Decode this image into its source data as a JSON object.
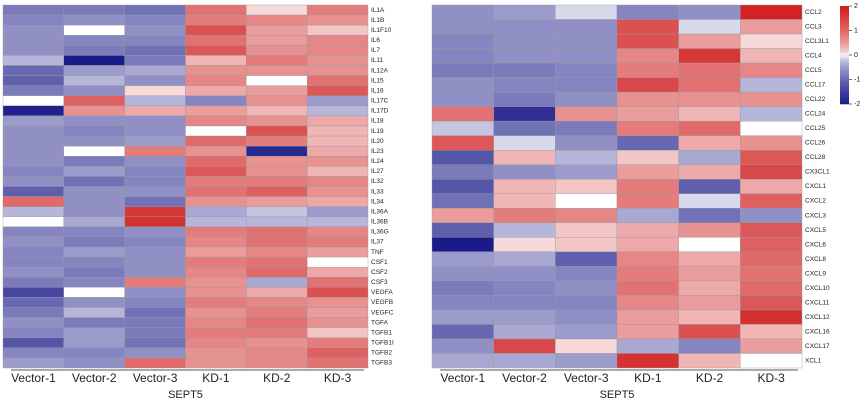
{
  "chart_data": [
    {
      "type": "heatmap",
      "xlabel": "SEPT5",
      "columns": [
        "Vector-1",
        "Vector-2",
        "Vector-3",
        "KD-1",
        "KD-2",
        "KD-3"
      ],
      "rows": [
        "IL1A",
        "IL1B",
        "IL1F10",
        "IL6",
        "IL7",
        "IL11",
        "IL12A",
        "IL15",
        "IL16",
        "IL17C",
        "IL17D",
        "IL18",
        "IL19",
        "IL20",
        "IL23",
        "IL24",
        "IL27",
        "IL32",
        "IL33",
        "IL34",
        "IL36A",
        "IL36B",
        "IL36G",
        "IL37",
        "TNF",
        "CSF1",
        "CSF2",
        "CSF3",
        "VEGFA",
        "VEGFB",
        "VEGFC",
        "TGFA",
        "TGFB1",
        "TGFB1I",
        "TGFB2",
        "TGFB3"
      ],
      "colors": [
        "#1a1a8a",
        "#ffffff",
        "#d01c1c"
      ],
      "zlim": [
        -2,
        2
      ],
      "values": [
        [
          -0.8,
          -0.8,
          -0.9,
          0.9,
          0.1,
          0.8
        ],
        [
          -0.7,
          -0.6,
          -0.7,
          0.8,
          0.7,
          0.6
        ],
        [
          -0.6,
          0.0,
          -0.6,
          1.3,
          0.5,
          0.2
        ],
        [
          -0.6,
          -0.7,
          -0.7,
          0.9,
          0.5,
          0.7
        ],
        [
          -0.6,
          -0.8,
          -0.9,
          1.2,
          0.6,
          0.7
        ],
        [
          -0.3,
          -2.0,
          -0.8,
          0.3,
          0.8,
          0.6
        ],
        [
          -1.0,
          -0.5,
          -0.4,
          0.6,
          0.6,
          0.6
        ],
        [
          -1.1,
          -0.3,
          -0.6,
          0.7,
          0.0,
          0.9
        ],
        [
          -0.8,
          -0.6,
          0.1,
          0.4,
          0.5,
          1.2
        ],
        [
          0.0,
          1.1,
          -0.3,
          -0.7,
          0.6,
          -0.5
        ],
        [
          -1.9,
          0.6,
          0.4,
          0.5,
          0.3,
          -0.3
        ],
        [
          -0.5,
          -0.6,
          -0.6,
          0.7,
          0.6,
          0.4
        ],
        [
          -0.6,
          -0.7,
          -0.6,
          0.0,
          1.3,
          0.3
        ],
        [
          -0.6,
          -0.6,
          -0.5,
          1.0,
          0.8,
          0.3
        ],
        [
          -0.6,
          0.0,
          0.8,
          0.6,
          -1.8,
          0.4
        ],
        [
          -0.6,
          -0.8,
          -0.6,
          1.0,
          0.6,
          0.6
        ],
        [
          -0.7,
          -0.5,
          -0.7,
          1.2,
          0.6,
          0.3
        ],
        [
          -0.6,
          -0.9,
          -0.7,
          0.8,
          0.8,
          0.7
        ],
        [
          -1.1,
          -0.6,
          -0.6,
          0.9,
          1.1,
          0.6
        ],
        [
          1.0,
          -0.6,
          -0.9,
          0.6,
          0.5,
          0.4
        ],
        [
          -0.3,
          -0.6,
          1.6,
          -0.4,
          -0.2,
          -0.5
        ],
        [
          0.0,
          -0.4,
          1.7,
          -0.3,
          -0.3,
          -0.3
        ],
        [
          -0.7,
          -0.7,
          -0.6,
          0.8,
          0.9,
          0.7
        ],
        [
          -0.6,
          -0.8,
          -0.7,
          0.7,
          0.9,
          0.8
        ],
        [
          -0.7,
          -0.5,
          -0.6,
          0.5,
          0.7,
          0.5
        ],
        [
          -0.7,
          -0.7,
          -0.6,
          0.8,
          0.9,
          0.0
        ],
        [
          -0.6,
          -0.8,
          -0.6,
          0.7,
          1.0,
          0.4
        ],
        [
          -0.8,
          -0.7,
          0.8,
          0.6,
          -0.4,
          0.9
        ],
        [
          -1.4,
          0.0,
          -0.6,
          0.6,
          0.4,
          1.3
        ],
        [
          -1.0,
          -0.6,
          -0.7,
          0.8,
          0.7,
          0.6
        ],
        [
          -0.8,
          -0.3,
          -0.9,
          0.6,
          0.8,
          0.5
        ],
        [
          -0.6,
          -0.8,
          -0.8,
          0.7,
          0.9,
          0.6
        ],
        [
          -0.7,
          -0.5,
          -0.8,
          0.8,
          0.8,
          0.2
        ],
        [
          -1.2,
          -0.5,
          -0.9,
          0.7,
          0.6,
          0.8
        ],
        [
          -0.7,
          -0.7,
          -0.6,
          0.6,
          0.7,
          1.1
        ],
        [
          -0.5,
          -0.6,
          1.0,
          0.6,
          0.7,
          0.9
        ]
      ]
    },
    {
      "type": "heatmap",
      "xlabel": "SEPT5",
      "columns": [
        "Vector-1",
        "Vector-2",
        "Vector-3",
        "KD-1",
        "KD-2",
        "KD-3"
      ],
      "rows": [
        "CCL2",
        "CCL3",
        "CCL3L1",
        "CCL4",
        "CCL5",
        "CCL17",
        "CCL22",
        "CCL24",
        "CCL25",
        "CCL26",
        "CCL28",
        "CX3CL1",
        "CXCL1",
        "CXCL2",
        "CXCL3",
        "CXCL5",
        "CXCL6",
        "CXCL8",
        "CXCL9",
        "CXCL10",
        "CXCL11",
        "CXCL12",
        "CXCL16",
        "CXCL17",
        "XCL1"
      ],
      "colors": [
        "#1a1a8a",
        "#ffffff",
        "#d01c1c"
      ],
      "zlim": [
        -2,
        2
      ],
      "zticks": [
        2,
        1,
        0,
        -1,
        -2
      ],
      "colorbar": true,
      "values": [
        [
          -0.6,
          -0.5,
          -0.1,
          -0.7,
          -0.6,
          1.9
        ],
        [
          -0.6,
          -0.6,
          -0.6,
          1.3,
          -0.1,
          0.5
        ],
        [
          -0.7,
          -0.6,
          -0.6,
          1.3,
          0.5,
          0.1
        ],
        [
          -0.7,
          -0.6,
          -0.6,
          0.7,
          1.6,
          0.3
        ],
        [
          -0.8,
          -0.8,
          -0.7,
          0.8,
          0.9,
          0.7
        ],
        [
          -0.6,
          -0.7,
          -0.7,
          1.4,
          0.9,
          -0.3
        ],
        [
          -0.6,
          -0.8,
          -0.6,
          0.6,
          0.6,
          0.6
        ],
        [
          0.9,
          -1.7,
          0.6,
          0.5,
          0.3,
          -0.3
        ],
        [
          -0.2,
          -0.9,
          -0.8,
          0.8,
          1.0,
          0.0
        ],
        [
          1.2,
          -0.1,
          -0.6,
          -1.0,
          0.4,
          0.6
        ],
        [
          -1.2,
          0.3,
          -0.3,
          0.2,
          -0.4,
          1.2
        ],
        [
          -0.8,
          -0.6,
          -0.5,
          0.5,
          0.4,
          1.4
        ],
        [
          -1.2,
          0.3,
          0.2,
          0.8,
          -1.1,
          0.4
        ],
        [
          -0.9,
          0.3,
          0.0,
          0.8,
          -0.1,
          1.1
        ],
        [
          0.5,
          0.8,
          0.7,
          -0.4,
          -0.9,
          -0.6
        ],
        [
          -1.1,
          -0.3,
          0.2,
          0.4,
          0.6,
          1.2
        ],
        [
          -2.0,
          0.1,
          0.2,
          0.4,
          0.0,
          1.1
        ],
        [
          -0.5,
          -0.4,
          -1.1,
          0.7,
          0.4,
          1.0
        ],
        [
          -0.6,
          -0.6,
          -0.7,
          0.8,
          0.5,
          0.9
        ],
        [
          -0.8,
          -0.7,
          -0.6,
          0.9,
          0.4,
          1.0
        ],
        [
          -0.7,
          -0.7,
          -0.7,
          0.7,
          0.5,
          1.2
        ],
        [
          -0.5,
          -0.5,
          -0.6,
          0.5,
          0.3,
          1.7
        ],
        [
          -1.0,
          -0.4,
          -0.5,
          0.5,
          1.3,
          0.3
        ],
        [
          -0.6,
          1.4,
          0.1,
          -0.4,
          -0.7,
          0.5
        ],
        [
          -0.4,
          -0.4,
          -0.5,
          1.7,
          0.3,
          0.0
        ]
      ]
    }
  ]
}
